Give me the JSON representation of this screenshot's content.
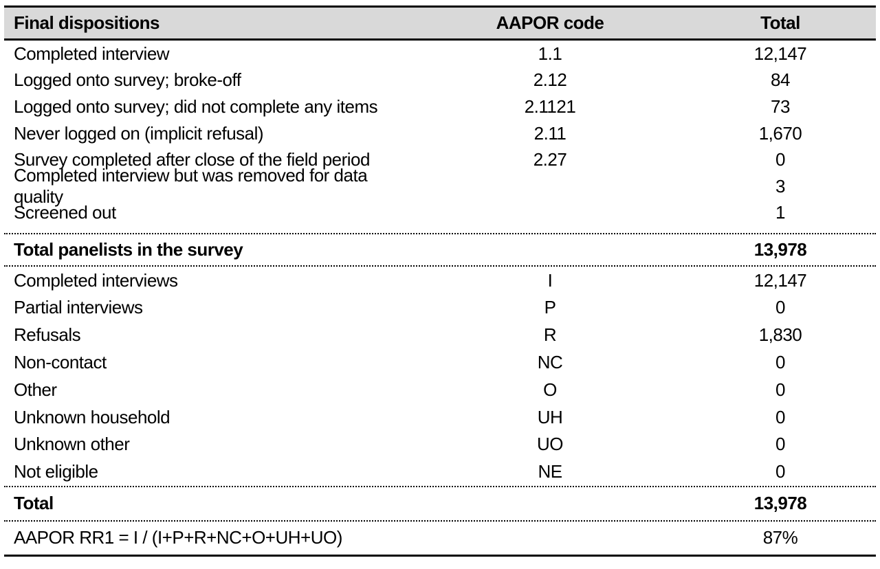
{
  "table": {
    "title": "Final dispositions",
    "columns": [
      {
        "label": "Final dispositions",
        "align": "left"
      },
      {
        "label": "AAPOR code",
        "align": "center"
      },
      {
        "label": "Total",
        "align": "center"
      }
    ],
    "rows": [
      {
        "label": "Completed interview",
        "code": "1.1",
        "total": "12,147",
        "row_type": "data-1"
      },
      {
        "label": "Logged onto survey; broke-off",
        "code": "2.12",
        "total": "84",
        "row_type": "data-1"
      },
      {
        "label": "Logged onto survey; did not complete any items",
        "code": "2.1121",
        "total": "73",
        "row_type": "data-1"
      },
      {
        "label": "Never logged on (implicit refusal)",
        "code": "2.11",
        "total": "1,670",
        "row_type": "data-1"
      },
      {
        "label": "Survey completed after close of the field period",
        "code": "2.27",
        "total": "0",
        "row_type": "data-1"
      },
      {
        "label": "Completed interview but was removed for data quality",
        "code": "",
        "total": "3",
        "row_type": "data-1"
      },
      {
        "label": "Screened out",
        "code": "",
        "total": "1",
        "row_type": "data-1"
      },
      {
        "label": "Total panelists in the survey",
        "code": "",
        "total": "13,978",
        "row_type": "total-1"
      },
      {
        "label": "Completed interviews",
        "code": "I",
        "total": "12,147",
        "row_type": "data-2"
      },
      {
        "label": "Partial interviews",
        "code": "P",
        "total": "0",
        "row_type": "data-2"
      },
      {
        "label": "Refusals",
        "code": "R",
        "total": "1,830",
        "row_type": "data-2"
      },
      {
        "label": "Non-contact",
        "code": "NC",
        "total": "0",
        "row_type": "data-2"
      },
      {
        "label": "Other",
        "code": "O",
        "total": "0",
        "row_type": "data-2"
      },
      {
        "label": "Unknown household",
        "code": "UH",
        "total": "0",
        "row_type": "data-2"
      },
      {
        "label": "Unknown other",
        "code": "UO",
        "total": "0",
        "row_type": "data-2"
      },
      {
        "label": "Not eligible",
        "code": "NE",
        "total": "0",
        "row_type": "data-2"
      },
      {
        "label": "Total",
        "code": "",
        "total": "13,978",
        "row_type": "total-2"
      },
      {
        "label": "AAPOR RR1 = I / (I+P+R+NC+O+UH+UO)",
        "code": "",
        "total": "87%",
        "row_type": "formula"
      }
    ],
    "colors": {
      "header_bg": "#d9d9d9",
      "text": "#000000",
      "background": "#ffffff",
      "rule": "#000000"
    }
  }
}
